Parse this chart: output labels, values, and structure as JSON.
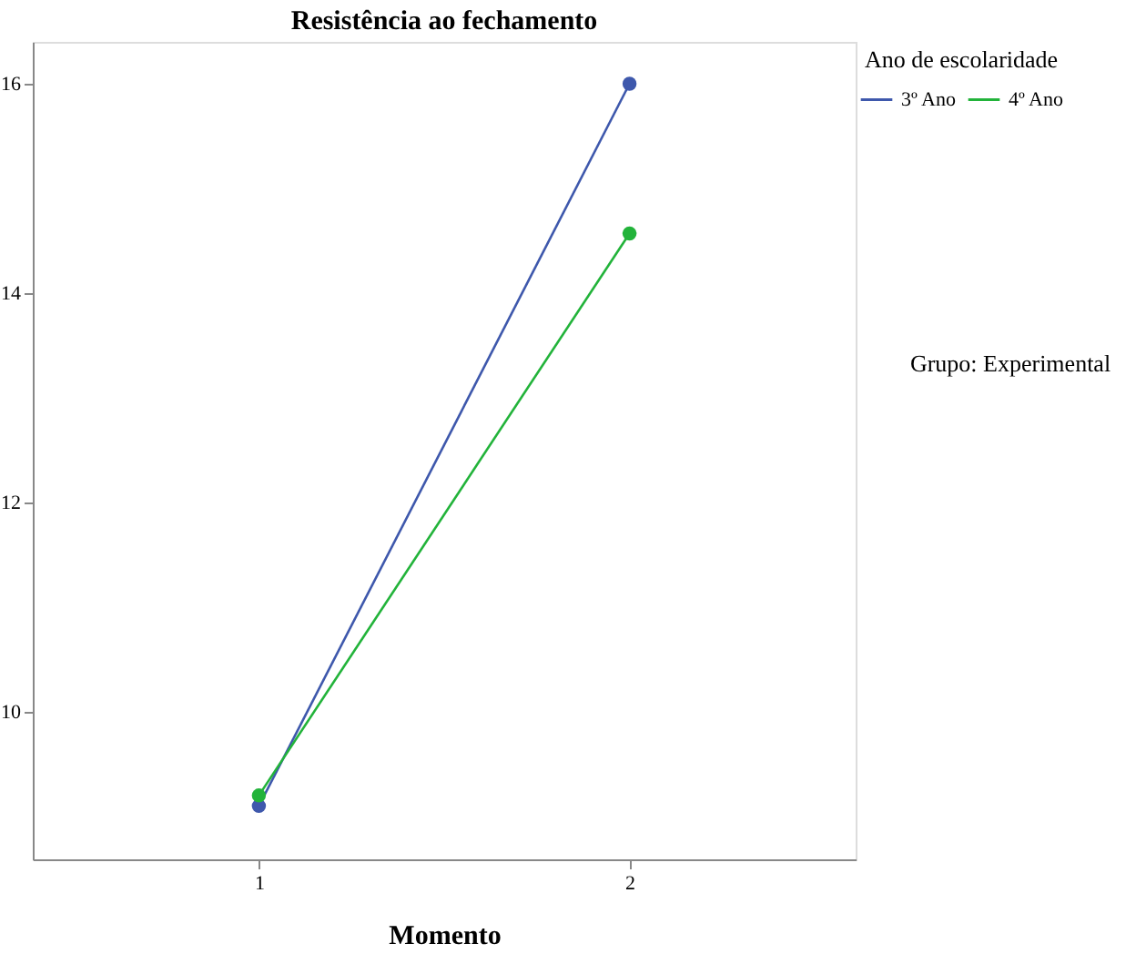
{
  "chart_data": {
    "type": "line",
    "title": "Resistência ao fechamento",
    "xlabel": "Momento",
    "legend_title": "Ano de escolaridade",
    "categories": [
      "1",
      "2"
    ],
    "series": [
      {
        "name": "3º Ano",
        "color": "#3e58ac",
        "values": [
          9.1,
          16.0
        ]
      },
      {
        "name": "4º Ano",
        "color": "#22b33a",
        "values": [
          9.2,
          14.57
        ]
      }
    ],
    "ylim": [
      8.59,
      16.4
    ],
    "yticks": [
      10,
      12,
      14,
      16
    ],
    "grid": false,
    "legend": "top right",
    "marker": "circle",
    "line_style": "solid",
    "annotations": [
      "Grupo: Experimental"
    ]
  }
}
